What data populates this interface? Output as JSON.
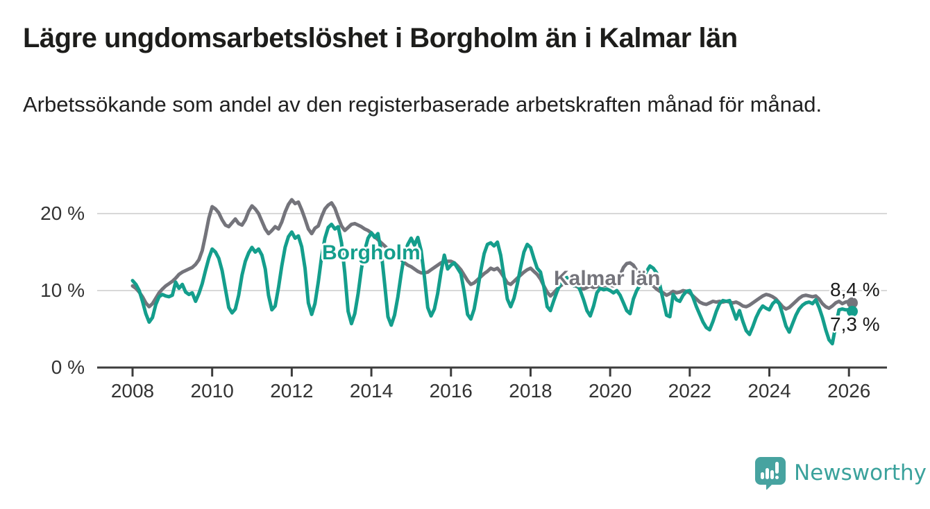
{
  "header": {
    "title": "Lägre ungdomsarbetslöshet i Borgholm än i Kalmar län",
    "subtitle": "Arbetssökande som andel av den registerbaserade arbetskraften månad för månad."
  },
  "chart_data": {
    "type": "line",
    "unit": "%",
    "x_start": "2008-01",
    "x_end": "2026-02",
    "x_tick_years": [
      "2008",
      "2010",
      "2012",
      "2014",
      "2016",
      "2018",
      "2020",
      "2022",
      "2024",
      "2026"
    ],
    "yticks": [
      0,
      10,
      20
    ],
    "ytick_labels": [
      "0 %",
      "10 %",
      "20 %"
    ],
    "ylim": [
      0,
      23
    ],
    "grid": "horizontal-only",
    "legend_position": "inline-labels",
    "series": [
      {
        "name": "Kalmar län",
        "color": "#74747b",
        "end_value": 8.4,
        "end_label": "8,4 %",
        "values": [
          10.6,
          10.3,
          9.8,
          9.2,
          8.4,
          7.9,
          8.3,
          9.0,
          9.7,
          10.2,
          10.6,
          10.9,
          11.2,
          11.6,
          12.1,
          12.4,
          12.6,
          12.8,
          13.0,
          13.4,
          14.0,
          15.2,
          17.2,
          19.4,
          20.9,
          20.6,
          20.1,
          19.2,
          18.5,
          18.3,
          18.8,
          19.3,
          18.7,
          18.5,
          19.2,
          20.3,
          21.0,
          20.6,
          20.0,
          19.0,
          18.0,
          17.4,
          17.8,
          18.3,
          18.0,
          18.9,
          20.2,
          21.2,
          21.8,
          21.3,
          21.5,
          20.5,
          19.3,
          18.0,
          17.4,
          18.1,
          18.4,
          19.6,
          20.6,
          21.1,
          21.4,
          20.7,
          19.5,
          18.4,
          17.8,
          18.2,
          18.6,
          18.7,
          18.5,
          18.3,
          18.0,
          17.8,
          17.5,
          17.0,
          16.6,
          16.2,
          15.8,
          15.4,
          15.1,
          14.8,
          14.4,
          14.0,
          13.6,
          13.3,
          13.1,
          12.8,
          12.5,
          12.3,
          12.3,
          12.4,
          12.7,
          13.0,
          13.3,
          13.6,
          13.8,
          13.8,
          13.8,
          13.6,
          13.2,
          12.7,
          12.0,
          11.3,
          10.8,
          11.0,
          11.4,
          11.8,
          12.2,
          12.5,
          12.9,
          12.7,
          12.9,
          12.4,
          11.7,
          11.0,
          10.8,
          11.2,
          11.6,
          12.0,
          12.4,
          12.7,
          12.9,
          12.5,
          12.1,
          11.5,
          10.6,
          9.8,
          9.3,
          9.7,
          10.2,
          10.6,
          10.9,
          11.0,
          11.0,
          10.7,
          10.5,
          10.3,
          10.2,
          10.4,
          10.6,
          10.4,
          10.5,
          10.7,
          10.6,
          10.7,
          10.7,
          10.6,
          11.0,
          12.0,
          13.0,
          13.5,
          13.6,
          13.3,
          12.6,
          12.0,
          11.6,
          11.3,
          11.0,
          10.6,
          10.2,
          9.9,
          9.7,
          9.4,
          9.6,
          9.9,
          9.7,
          9.8,
          10.0,
          9.9,
          9.7,
          9.3,
          8.9,
          8.5,
          8.3,
          8.2,
          8.4,
          8.6,
          8.5,
          8.6,
          8.5,
          8.6,
          8.5,
          8.4,
          8.5,
          8.3,
          8.0,
          7.9,
          8.1,
          8.4,
          8.7,
          9.0,
          9.3,
          9.5,
          9.4,
          9.2,
          8.9,
          8.4,
          7.9,
          7.6,
          7.8,
          8.2,
          8.6,
          9.0,
          9.3,
          9.4,
          9.3,
          9.2,
          9.3,
          8.9,
          8.3,
          7.9,
          7.7,
          8.0,
          8.4,
          8.6,
          8.3,
          8.5,
          8.6,
          8.4
        ]
      },
      {
        "name": "Borgholm",
        "color": "#149e8c",
        "end_value": 7.3,
        "end_label": "7,3 %",
        "values": [
          11.3,
          10.8,
          10.0,
          8.6,
          7.0,
          5.9,
          6.5,
          8.2,
          9.2,
          9.5,
          9.3,
          9.2,
          9.4,
          11.1,
          10.3,
          10.8,
          9.8,
          9.5,
          9.7,
          8.6,
          9.6,
          10.9,
          12.6,
          14.2,
          15.4,
          15.0,
          14.2,
          12.6,
          10.2,
          7.8,
          7.1,
          7.6,
          9.4,
          12.0,
          13.8,
          14.9,
          15.6,
          15.0,
          15.4,
          14.6,
          12.8,
          9.4,
          7.5,
          8.0,
          10.4,
          13.2,
          15.6,
          17.0,
          17.6,
          16.8,
          17.1,
          15.7,
          12.9,
          8.4,
          6.9,
          8.3,
          11.1,
          14.4,
          16.8,
          18.2,
          18.6,
          18.0,
          18.3,
          16.2,
          12.3,
          7.3,
          5.7,
          7.0,
          9.6,
          12.8,
          15.2,
          16.8,
          17.5,
          16.9,
          17.4,
          15.0,
          10.9,
          6.6,
          5.5,
          6.8,
          9.2,
          12.2,
          14.8,
          16.0,
          16.8,
          15.9,
          16.9,
          15.2,
          11.8,
          7.8,
          6.7,
          7.6,
          9.6,
          12.4,
          14.6,
          12.8,
          13.3,
          13.6,
          12.9,
          12.2,
          9.8,
          6.9,
          6.3,
          7.6,
          10.0,
          12.6,
          14.8,
          16.0,
          16.2,
          15.8,
          16.3,
          14.6,
          11.8,
          8.9,
          7.9,
          9.0,
          10.8,
          13.0,
          15.0,
          16.0,
          15.6,
          14.2,
          12.9,
          12.4,
          10.5,
          7.9,
          7.4,
          8.7,
          9.9,
          10.9,
          11.5,
          11.7,
          11.5,
          10.6,
          10.9,
          10.0,
          8.8,
          7.4,
          6.7,
          8.0,
          9.7,
          10.3,
          10.1,
          10.2,
          10.0,
          9.7,
          10.0,
          9.4,
          8.4,
          7.4,
          7.0,
          8.9,
          10.0,
          10.7,
          11.7,
          12.5,
          13.2,
          12.9,
          12.3,
          10.7,
          8.7,
          6.8,
          6.6,
          9.5,
          8.8,
          8.6,
          9.4,
          9.9,
          10.0,
          9.1,
          7.9,
          6.9,
          5.9,
          5.2,
          4.9,
          6.0,
          7.3,
          8.3,
          8.7,
          8.6,
          8.7,
          7.5,
          6.3,
          7.4,
          6.0,
          4.8,
          4.3,
          5.3,
          6.5,
          7.4,
          8.0,
          7.7,
          7.5,
          8.3,
          8.7,
          8.3,
          6.9,
          5.4,
          4.6,
          5.7,
          6.8,
          7.6,
          8.1,
          8.4,
          8.5,
          8.3,
          8.8,
          7.8,
          6.5,
          4.9,
          3.6,
          3.1,
          5.4,
          7.5,
          7.6,
          7.5,
          7.5,
          7.3
        ]
      }
    ]
  },
  "annotations": {
    "borgholm_label": "Borgholm",
    "kalmar_label": "Kalmar län",
    "kalmar_end_value": "8,4 %",
    "borgholm_end_value": "7,3 %"
  },
  "footer": {
    "brand": "Newsworthy"
  },
  "colors": {
    "borgholm_line": "#149e8c",
    "kalmar_line": "#74747b",
    "gridline": "#d8d8d8",
    "axis": "#3c3c3c",
    "axis_text": "#333333",
    "logo_teal": "#47a3a0"
  }
}
